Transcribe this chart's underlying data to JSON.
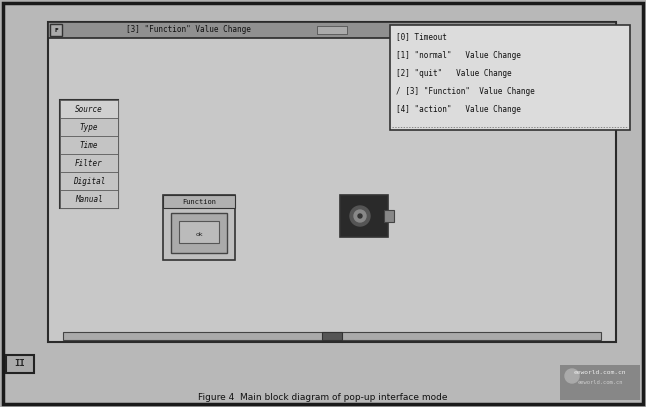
{
  "bg_outer": "#b0b0b0",
  "bg_inner": "#c0c0c0",
  "win_bg": "#c8c8c8",
  "titlebar_color": "#999999",
  "popup_bg": "#e0e0e0",
  "left_menu_bg": "#cccccc",
  "title_text": "[3] \"Function\" Value Change",
  "menu_items": [
    "[0] Timeout",
    "[1] \"normal\"   Value Change",
    "[2] \"quit\"   Value Change",
    "/ [3] \"Function\"  Value Change",
    "[4] \"action\"   Value Change"
  ],
  "left_menu_items": [
    "Source",
    "Type",
    "Time",
    "Filter",
    "Digital",
    "Manual"
  ],
  "caption": "Figure 4  Main block diagram of pop-up interface mode",
  "watermark_line1": "eeworld.com.cn",
  "watermark_line2": "eeworld.com.cn"
}
